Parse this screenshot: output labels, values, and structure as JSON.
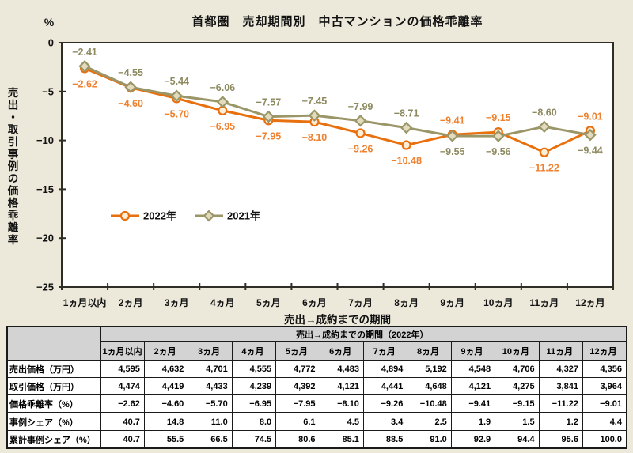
{
  "title": "首都圏　売却期間別　中古マンションの価格乖離率",
  "chart_data": {
    "type": "line",
    "categories": [
      "1ヵ月以内",
      "2ヵ月",
      "3ヵ月",
      "4ヵ月",
      "5ヵ月",
      "6ヵ月",
      "7ヵ月",
      "8ヵ月",
      "9ヵ月",
      "10ヵ月",
      "11ヵ月",
      "12ヵ月"
    ],
    "series": [
      {
        "name": "2022年",
        "marker": "circle",
        "line_color": "#e8700f",
        "label_color": "#ef8230",
        "marker_fill": "#fbefd8",
        "values": [
          -2.62,
          -4.6,
          -5.7,
          -6.95,
          -7.95,
          -8.1,
          -9.26,
          -10.48,
          -9.41,
          -9.15,
          -11.22,
          -9.01
        ]
      },
      {
        "name": "2021年",
        "marker": "diamond",
        "line_color": "#9a9668",
        "label_color": "#8d8a60",
        "marker_fill": "#e2dbbd",
        "values": [
          -2.41,
          -4.55,
          -5.44,
          -6.06,
          -7.57,
          -7.45,
          -7.99,
          -8.71,
          -9.55,
          -9.56,
          -8.6,
          -9.44
        ]
      }
    ],
    "y_unit": "%",
    "ylabel": "売出・取引事例の価格乖離率",
    "xlabel": "売出→成約までの期間",
    "ylim": [
      -25,
      0
    ],
    "yticks": [
      0,
      -5,
      -10,
      -15,
      -20,
      -25
    ],
    "grid": false,
    "legend_position": "inside-left"
  },
  "table": {
    "span_header": "売出→成約までの期間（2022年）",
    "columns": [
      "1ヵ月以内",
      "2ヵ月",
      "3ヵ月",
      "4ヵ月",
      "5ヵ月",
      "6ヵ月",
      "7ヵ月",
      "8ヵ月",
      "9ヵ月",
      "10ヵ月",
      "11ヵ月",
      "12ヵ月"
    ],
    "rows": [
      {
        "label": "売出価格（万円）",
        "values": [
          "4,595",
          "4,632",
          "4,701",
          "4,555",
          "4,772",
          "4,483",
          "4,894",
          "5,192",
          "4,548",
          "4,706",
          "4,327",
          "4,356"
        ]
      },
      {
        "label": "取引価格（万円）",
        "values": [
          "4,474",
          "4,419",
          "4,433",
          "4,239",
          "4,392",
          "4,121",
          "4,441",
          "4,648",
          "4,121",
          "4,275",
          "3,841",
          "3,964"
        ]
      },
      {
        "label": "価格乖離率（%）",
        "values": [
          "-2.62",
          "-4.60",
          "-5.70",
          "-6.95",
          "-7.95",
          "-8.10",
          "-9.26",
          "-10.48",
          "-9.41",
          "-9.15",
          "-11.22",
          "-9.01"
        ]
      },
      {
        "label": "事例シェア（%）",
        "values": [
          "40.7",
          "14.8",
          "11.0",
          "8.0",
          "6.1",
          "4.5",
          "3.4",
          "2.5",
          "1.9",
          "1.5",
          "1.2",
          "4.4"
        ]
      },
      {
        "label": "累計事例シェア（%）",
        "values": [
          "40.7",
          "55.5",
          "66.5",
          "74.5",
          "80.6",
          "85.1",
          "88.5",
          "91.0",
          "92.9",
          "94.4",
          "95.6",
          "100.0"
        ]
      }
    ]
  },
  "colors": {
    "page_background": "#ece8da",
    "plot_background": "#ffffff",
    "axis": "#2e2e27",
    "table_header_background": "#d3d3d3",
    "series_2022": "#e8700f",
    "series_2021": "#9a9668"
  }
}
